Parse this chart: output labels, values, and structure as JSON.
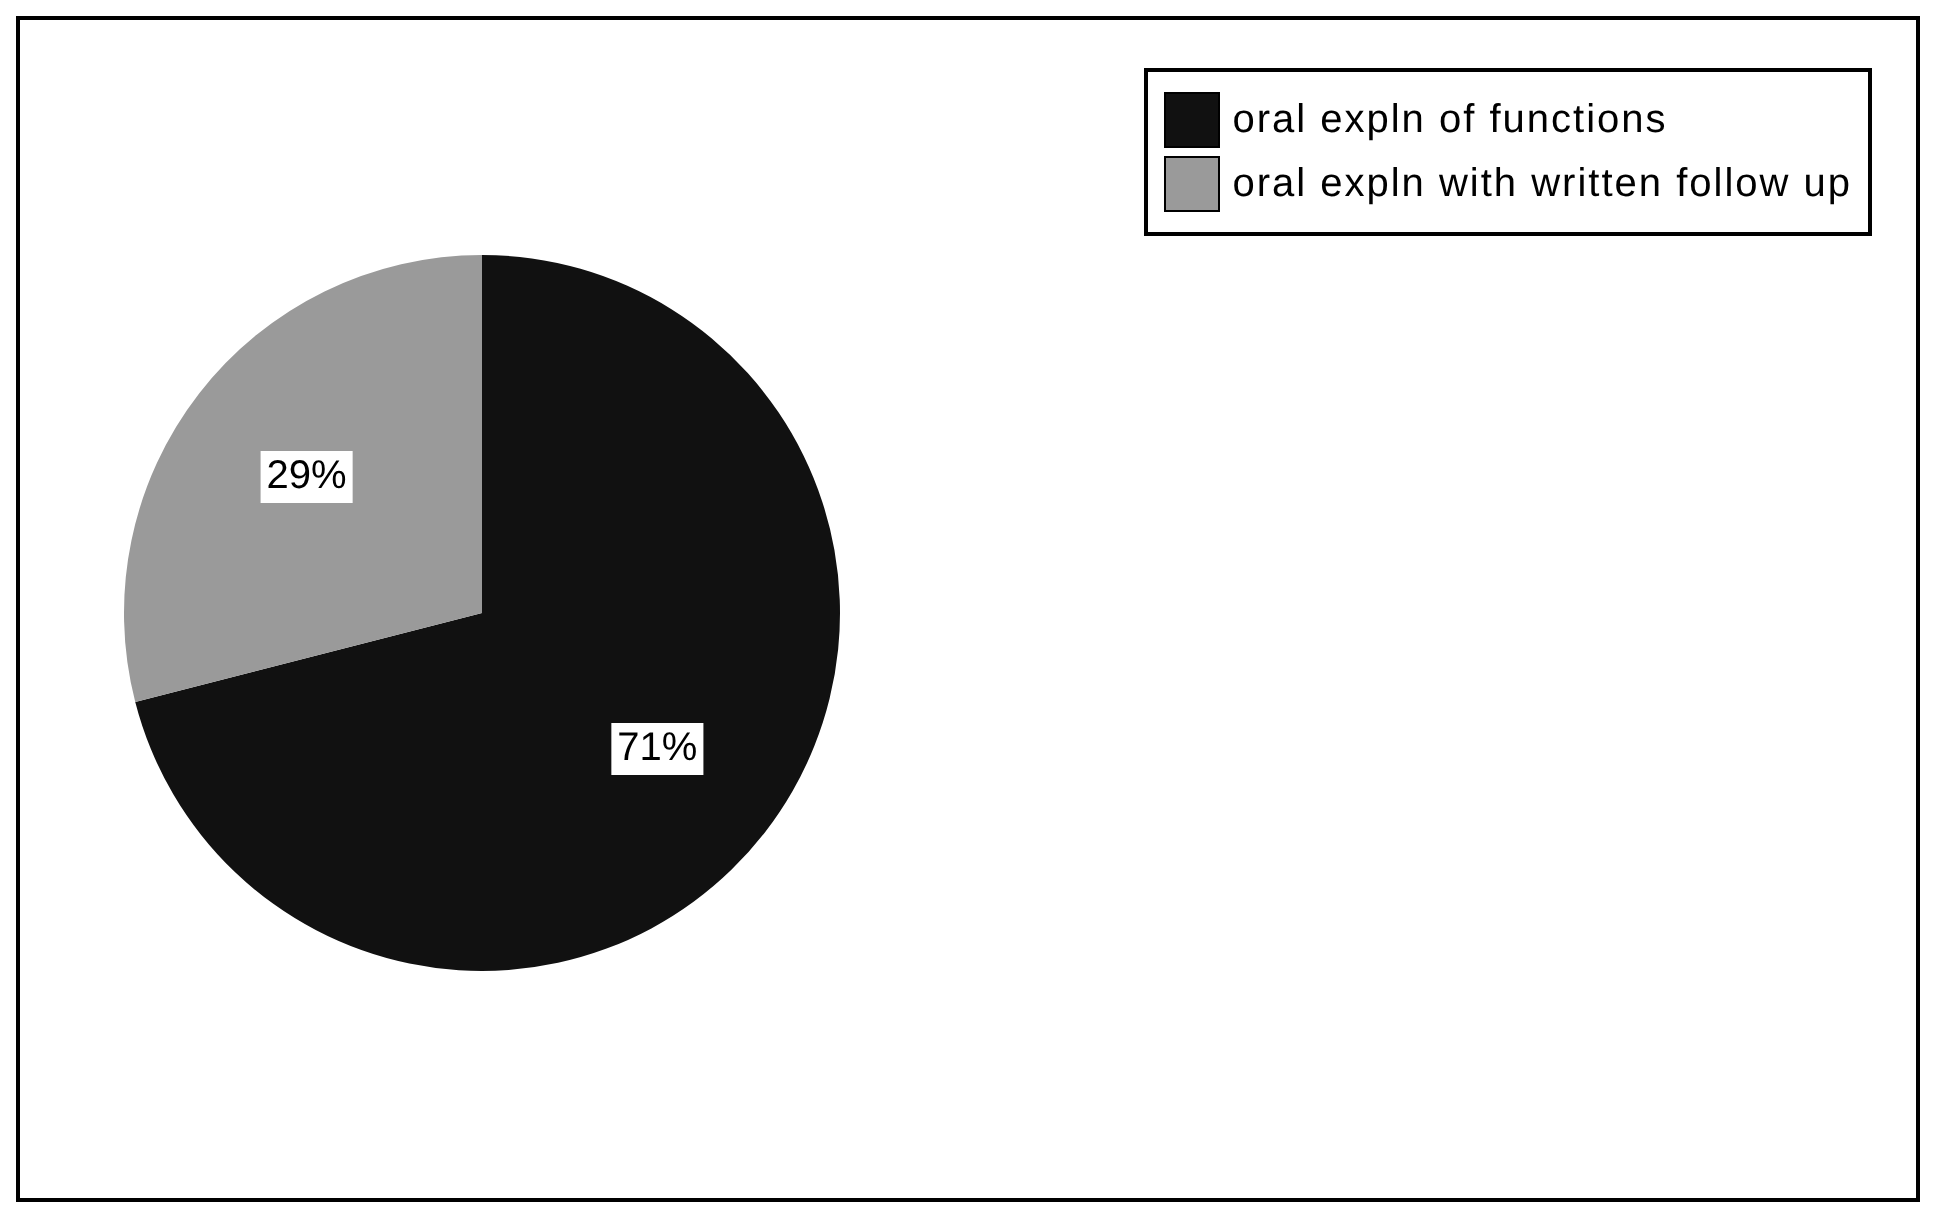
{
  "chart_data": {
    "type": "pie",
    "categories": [
      "oral expln of functions",
      "oral expln with written follow up"
    ],
    "values": [
      71,
      29
    ],
    "colors": [
      "#111111",
      "#9a9a9a"
    ],
    "value_labels": [
      "71%",
      "29%"
    ],
    "legend": "top right"
  }
}
